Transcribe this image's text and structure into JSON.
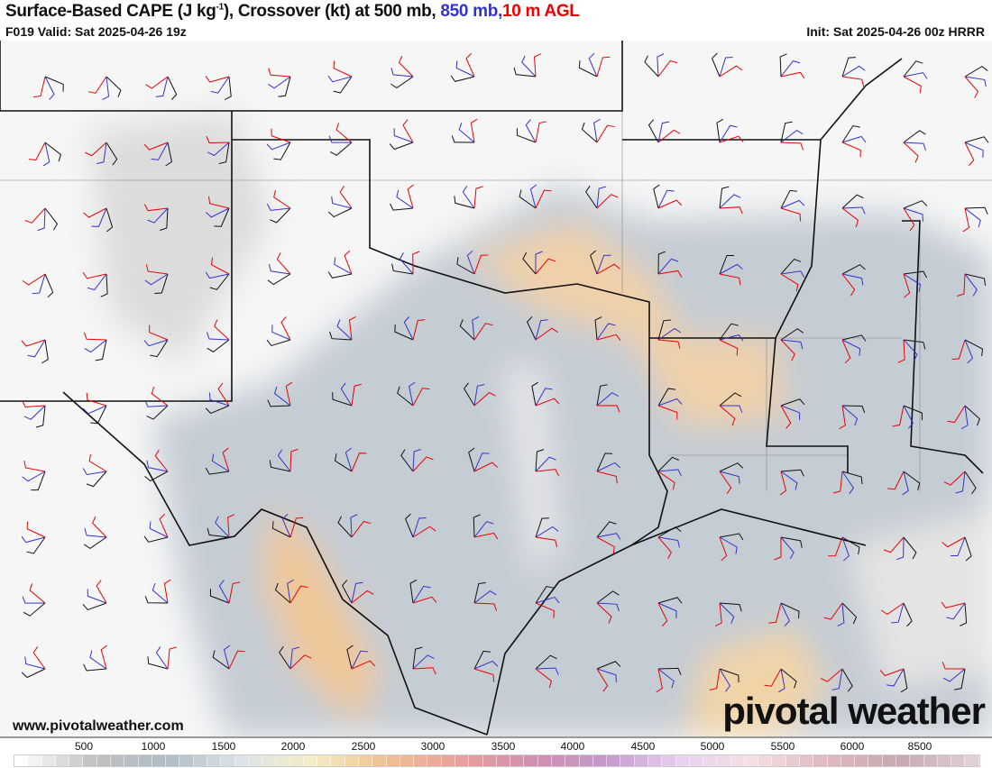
{
  "header": {
    "title_main": "Surface-Based CAPE (J kg",
    "title_sup": "-1",
    "title_rest": "), Crossover (kt) at 500 mb,",
    "title_850": "850 mb,",
    "title_10m": "10 m AGL",
    "valid": "F019 Valid: Sat 2025-04-26 19z",
    "init": "Init: Sat 2025-04-26 00z HRRR"
  },
  "colors": {
    "mb500": "#111111",
    "mb850": "#3333cc",
    "m10": "#ee0000"
  },
  "footer": {
    "site": "www.pivotalweather.com",
    "logo": "pivotal weather"
  },
  "colorbar": {
    "ticks": [
      "500",
      "1000",
      "1500",
      "2000",
      "2500",
      "3000",
      "3500",
      "4000",
      "4500",
      "5000",
      "5500",
      "6000",
      "8500"
    ],
    "stops": [
      "#ffffff",
      "#c0c0c0",
      "#b0bcc6",
      "#dce4e8",
      "#f4ecc4",
      "#f0c090",
      "#e8a09c",
      "#d090b0",
      "#c498cc",
      "#e8d0f0",
      "#f4e0e4",
      "#e0b8c0",
      "#c8a8b0",
      "#e0d0d4"
    ]
  }
}
